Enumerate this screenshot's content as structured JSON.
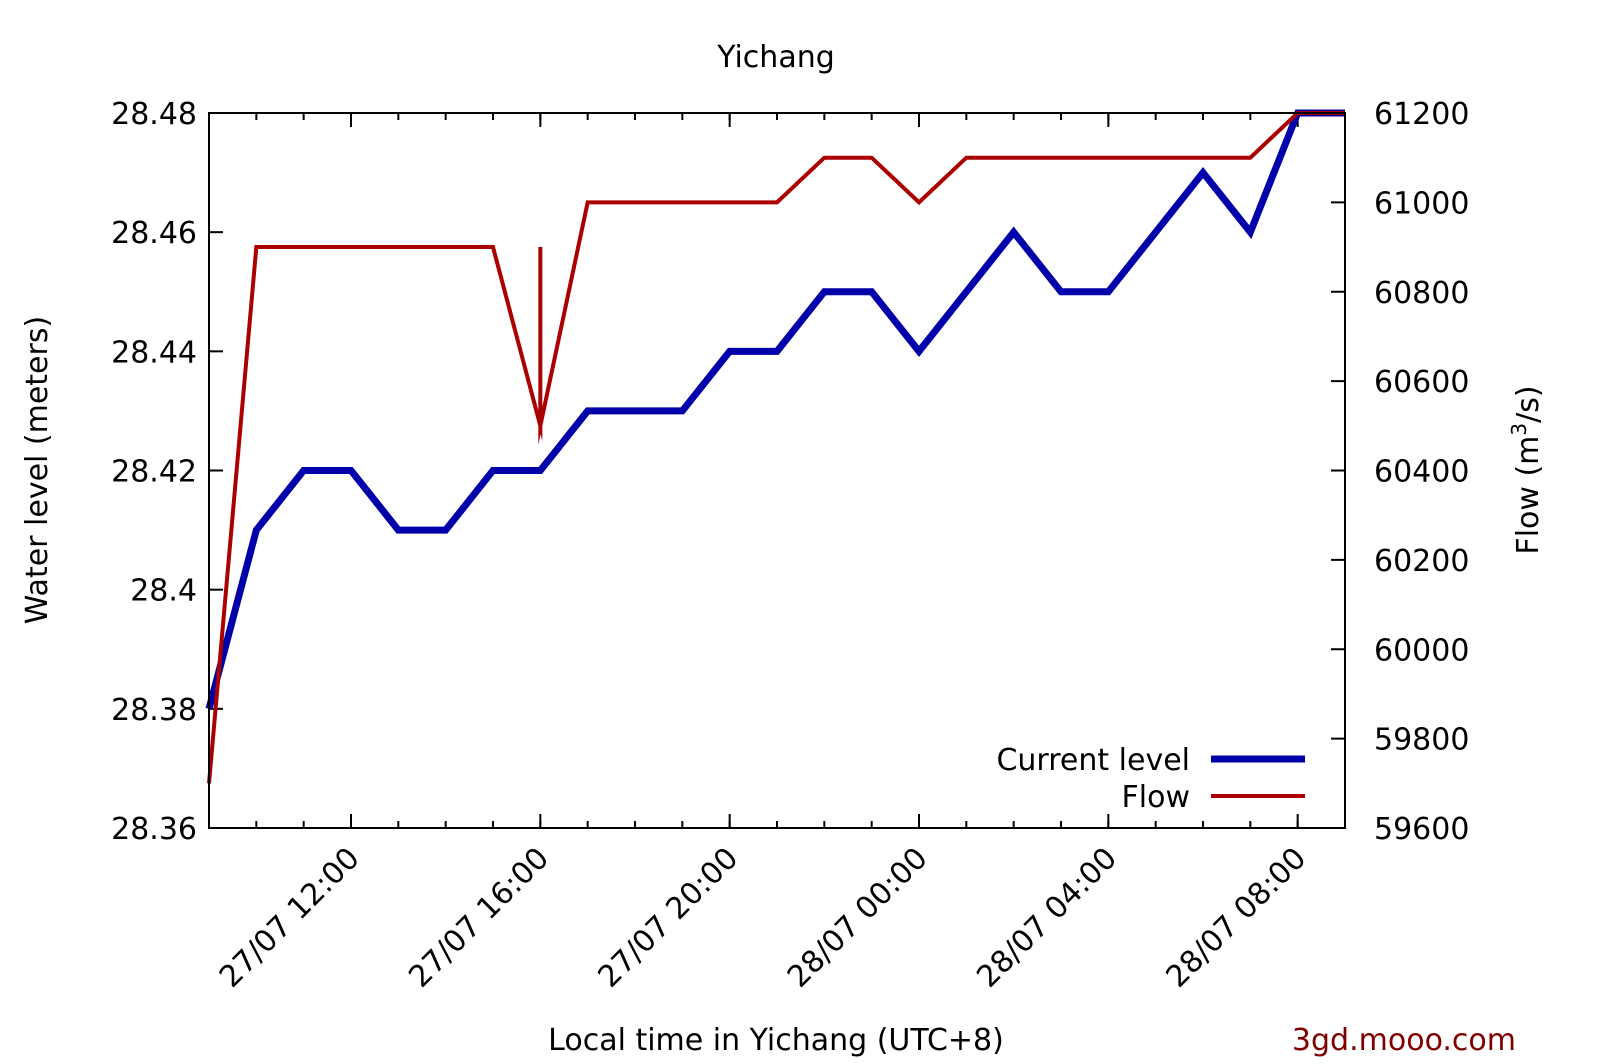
{
  "chart_data": {
    "type": "line",
    "title": "Yichang",
    "xlabel": "Local time in Yichang (UTC+8)",
    "ylabel": "Water level (meters)",
    "y2label_prefix": "Flow (m",
    "y2label_sup": "3",
    "y2label_suffix": "/s)",
    "credit": "3gd.mooo.com",
    "colors": {
      "level": "#0000aa",
      "flow": "#aa0000",
      "credit": "#800000"
    },
    "xlim": [
      "27/07 09:00",
      "28/07 09:00"
    ],
    "ylim": [
      28.36,
      28.48
    ],
    "y2lim": [
      59600,
      61200
    ],
    "xticks": [
      "27/07 12:00",
      "27/07 16:00",
      "27/07 20:00",
      "28/07 00:00",
      "28/07 04:00",
      "28/07 08:00"
    ],
    "yticks": [
      "28.36",
      "28.38",
      "28.4",
      "28.42",
      "28.44",
      "28.46",
      "28.48"
    ],
    "y2ticks": [
      "59600",
      "59800",
      "60000",
      "60200",
      "60400",
      "60600",
      "60800",
      "61000",
      "61200"
    ],
    "legend_position": "bottom-right",
    "grid": false,
    "series": [
      {
        "name": "Current level",
        "axis": "left",
        "x": [
          "27/07 09:00",
          "27/07 10:00",
          "27/07 11:00",
          "27/07 12:00",
          "27/07 13:00",
          "27/07 14:00",
          "27/07 15:00",
          "27/07 16:00",
          "27/07 17:00",
          "27/07 18:00",
          "27/07 19:00",
          "27/07 20:00",
          "27/07 21:00",
          "27/07 22:00",
          "27/07 23:00",
          "28/07 00:00",
          "28/07 01:00",
          "28/07 02:00",
          "28/07 03:00",
          "28/07 04:00",
          "28/07 05:00",
          "28/07 06:00",
          "28/07 07:00",
          "28/07 08:00",
          "28/07 09:00"
        ],
        "values": [
          28.38,
          28.41,
          28.42,
          28.42,
          28.41,
          28.41,
          28.42,
          28.42,
          28.43,
          28.43,
          28.43,
          28.44,
          28.44,
          28.45,
          28.45,
          28.44,
          28.45,
          28.46,
          28.45,
          28.45,
          28.46,
          28.47,
          28.46,
          28.48,
          28.48
        ]
      },
      {
        "name": "Flow",
        "axis": "right",
        "x": [
          "27/07 09:00",
          "27/07 10:00",
          "27/07 11:00",
          "27/07 12:00",
          "27/07 13:00",
          "27/07 14:00",
          "27/07 15:00",
          "27/07 16:00",
          "27/07 16:00",
          "27/07 16:00",
          "27/07 17:00",
          "27/07 18:00",
          "27/07 19:00",
          "27/07 20:00",
          "27/07 21:00",
          "27/07 22:00",
          "27/07 23:00",
          "28/07 00:00",
          "28/07 01:00",
          "28/07 02:00",
          "28/07 03:00",
          "28/07 04:00",
          "28/07 05:00",
          "28/07 06:00",
          "28/07 07:00",
          "28/07 08:00",
          "28/07 09:00"
        ],
        "values": [
          59700,
          60900,
          60900,
          60900,
          60900,
          60900,
          60900,
          60500,
          60900,
          60500,
          61000,
          61000,
          61000,
          61000,
          61000,
          61100,
          61100,
          61000,
          61100,
          61100,
          61100,
          61100,
          61100,
          61100,
          61100,
          61200,
          61200
        ]
      }
    ]
  }
}
